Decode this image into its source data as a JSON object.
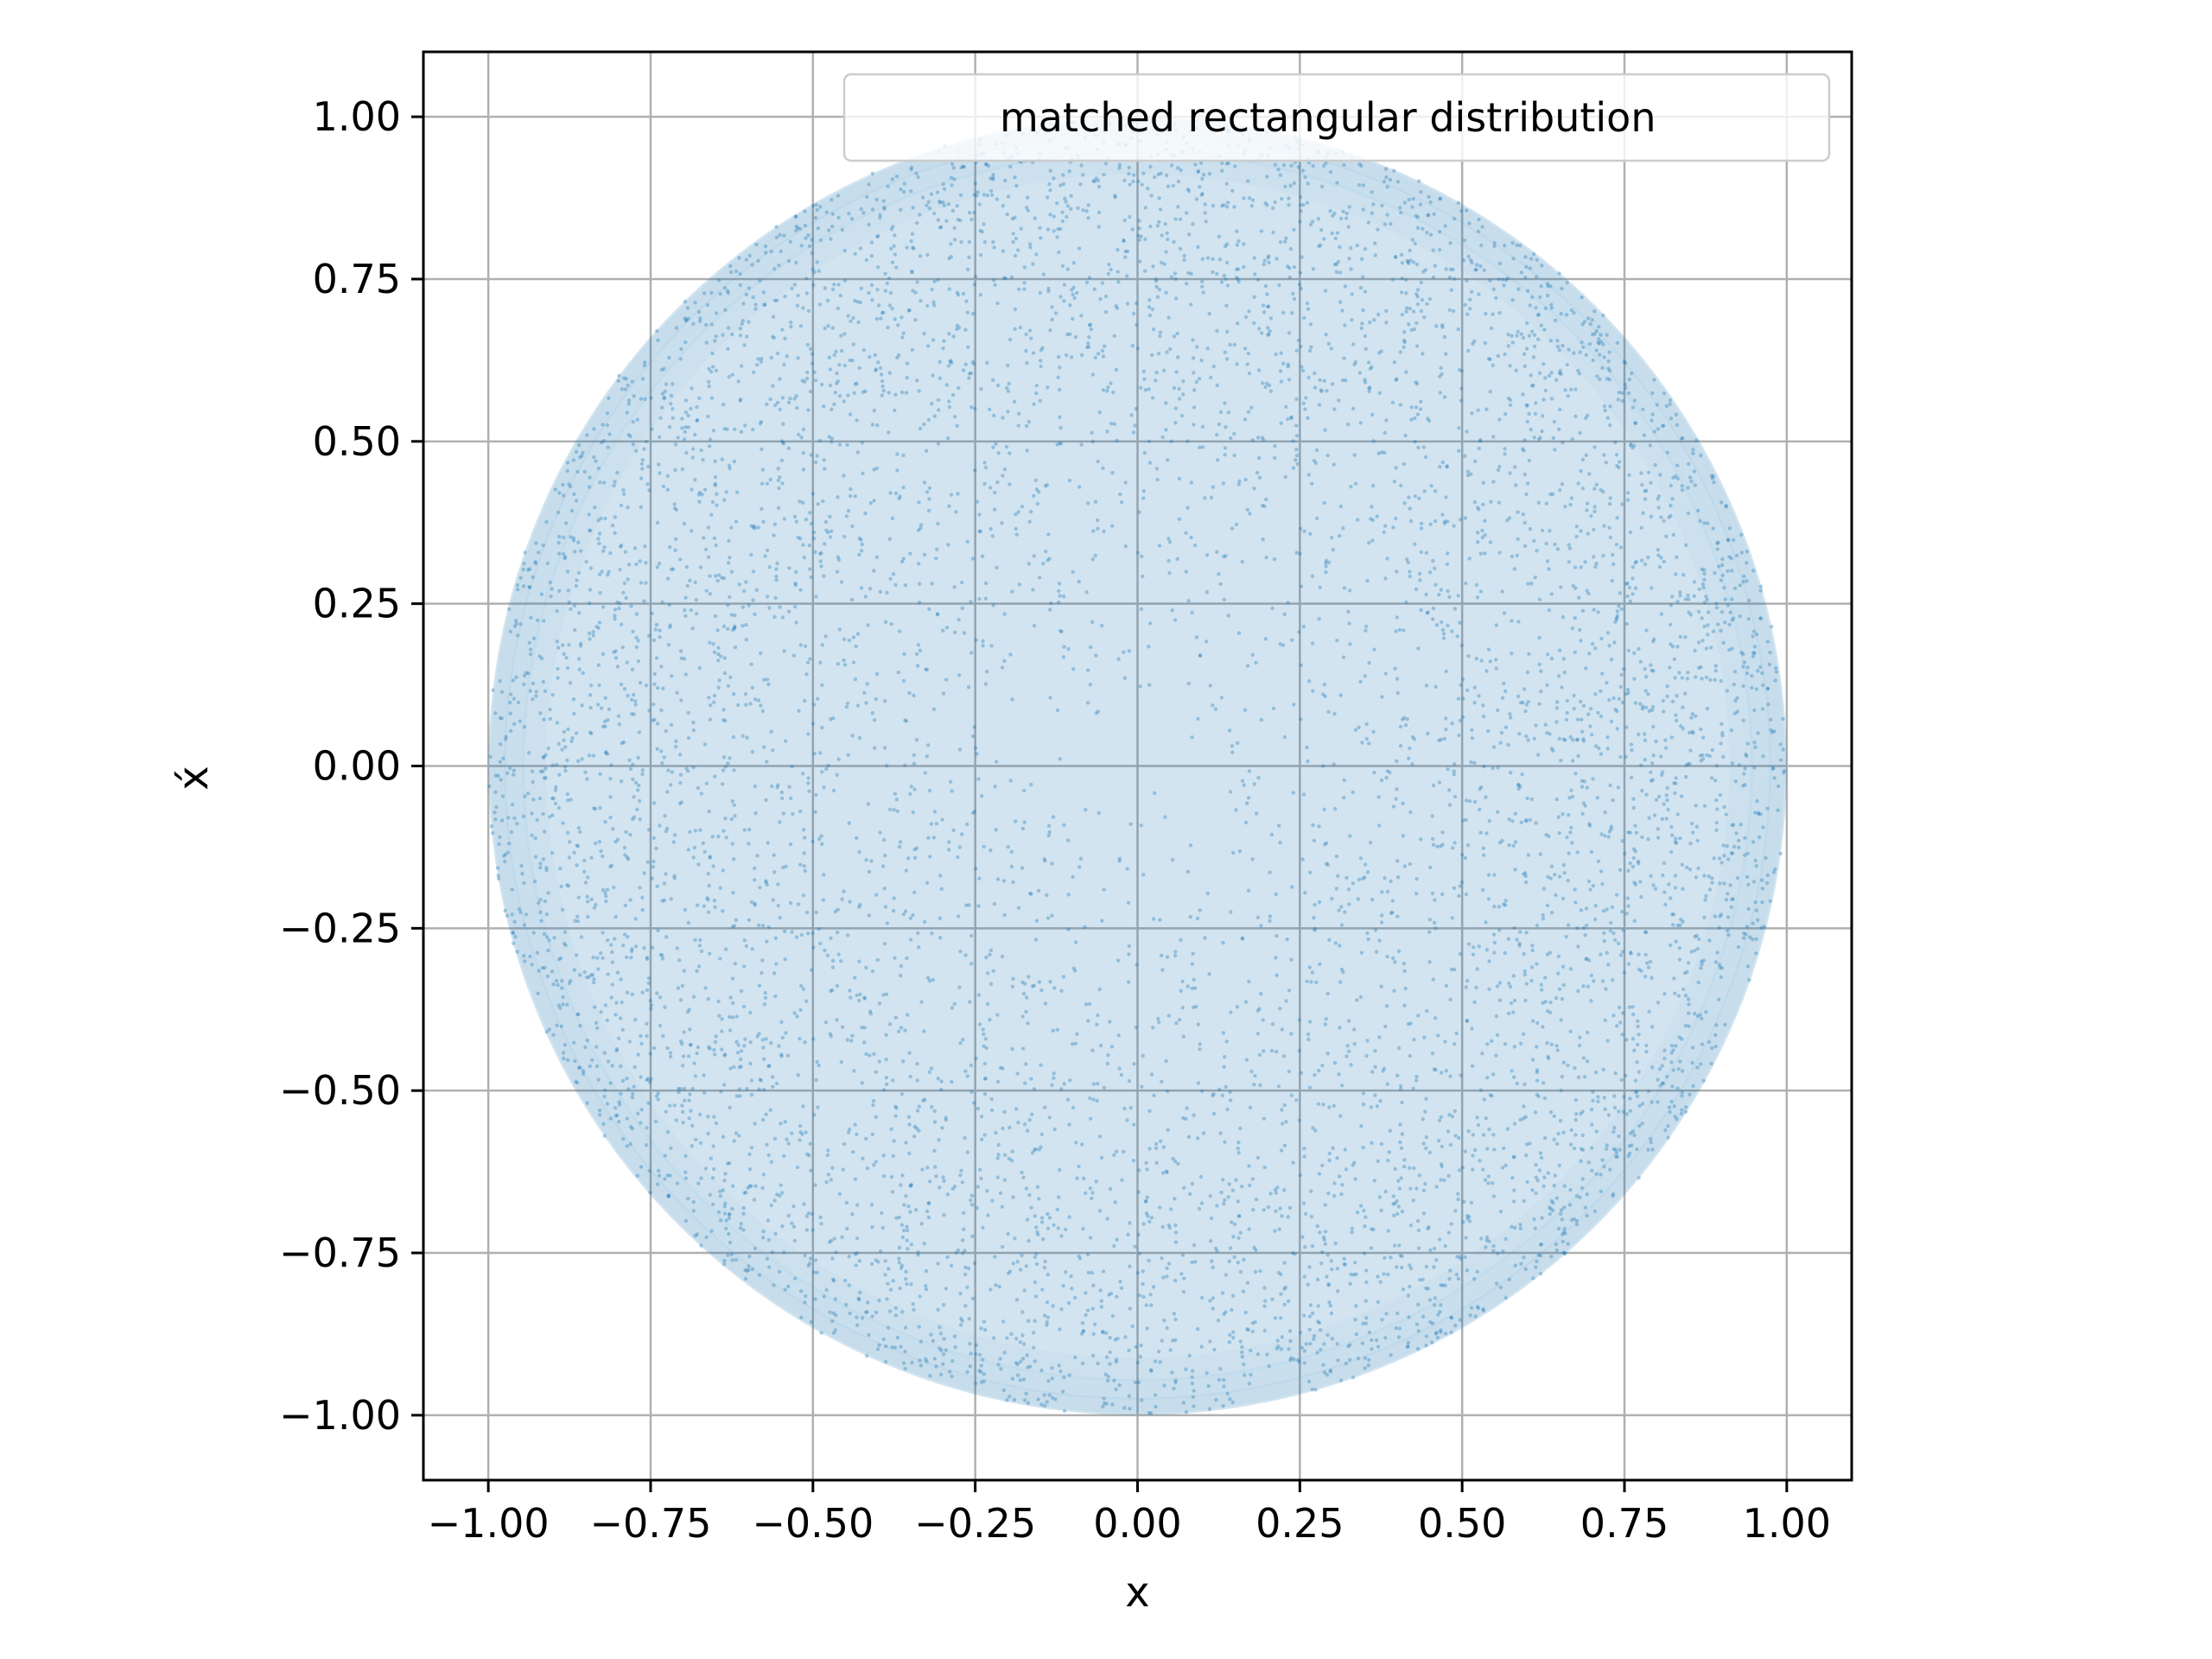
{
  "chart_data": {
    "type": "scatter",
    "title": "",
    "xlabel": "x",
    "ylabel": "x́",
    "xlim": [
      -1.1,
      1.1
    ],
    "ylim": [
      -1.1,
      1.1
    ],
    "grid": true,
    "xticks": [
      -1.0,
      -0.75,
      -0.5,
      -0.25,
      0.0,
      0.25,
      0.5,
      0.75,
      1.0
    ],
    "yticks": [
      -1.0,
      -0.75,
      -0.5,
      -0.25,
      0.0,
      0.25,
      0.5,
      0.75,
      1.0
    ],
    "xtick_labels": [
      "−1.00",
      "−0.75",
      "−0.50",
      "−0.25",
      "0.00",
      "0.25",
      "0.50",
      "0.75",
      "1.00"
    ],
    "ytick_labels": [
      "−1.00",
      "−0.75",
      "−0.50",
      "−0.25",
      "0.00",
      "0.25",
      "0.50",
      "0.75",
      "1.00"
    ],
    "legend": {
      "placement": "upper-right",
      "entries": [
        "matched rectangular distribution"
      ]
    },
    "series": [
      {
        "name": "matched rectangular distribution",
        "color": "#1f77b4",
        "shape": "filled-disk",
        "center": [
          0.0,
          0.0
        ],
        "radius": 1.0
      }
    ]
  }
}
